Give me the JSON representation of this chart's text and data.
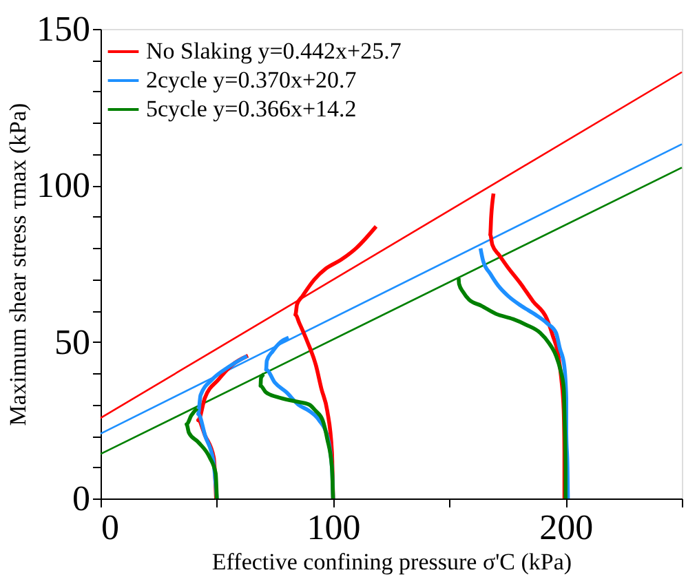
{
  "chart_data": {
    "type": "line",
    "xlabel": "Effective confining pressure σ'C (kPa)",
    "ylabel": "Maximum shear stress τmax (kPa)",
    "xlim": [
      0,
      250
    ],
    "xticks": [
      0,
      {
        "value": 50,
        "label": null
      },
      100,
      {
        "value": 150,
        "label": null
      },
      200,
      {
        "value": 250,
        "label": null
      }
    ],
    "ylim": [
      0,
      150
    ],
    "yticks": [
      0,
      {
        "value": 10,
        "label": null
      },
      {
        "value": 20,
        "label": null
      },
      {
        "value": 30,
        "label": null
      },
      {
        "value": 40,
        "label": null
      },
      50,
      {
        "value": 60,
        "label": null
      },
      {
        "value": 70,
        "label": null
      },
      {
        "value": 80,
        "label": null
      },
      {
        "value": 90,
        "label": null
      },
      100,
      {
        "value": 110,
        "label": null
      },
      {
        "value": 120,
        "label": null
      },
      {
        "value": 130,
        "label": null
      },
      {
        "value": 140,
        "label": null
      },
      150
    ],
    "grid": false,
    "legend": "top left",
    "marker": "none",
    "line_style": "solid",
    "series": [
      {
        "name": "No Slaking    y=0.442x+25.7",
        "color": "#ff0000",
        "x": [
          0,
          250
        ],
        "values": [
          25.7,
          136.2
        ]
      },
      {
        "name": "2cycle    y=0.370x+20.7",
        "color": "#1e90ff",
        "x": [
          0,
          250
        ],
        "values": [
          20.7,
          113.2
        ]
      },
      {
        "name": "5cycle    y=0.366x+14.2",
        "color": "#008000",
        "x": [
          0,
          250
        ],
        "values": [
          14.2,
          105.7
        ]
      },
      {
        "color": "#ff0000",
        "x": [
          49.7,
          48.7,
          45,
          42,
          44.8,
          50.7,
          56.5,
          63.4
        ],
        "values": [
          0,
          13,
          20,
          25,
          32,
          38,
          42.6,
          45.6
        ]
      },
      {
        "color": "#1e90ff",
        "x": [
          50,
          48.5,
          45,
          42,
          43,
          48,
          55,
          63
        ],
        "values": [
          0,
          12,
          20,
          27,
          33,
          38,
          42,
          45.5
        ]
      },
      {
        "color": "#008000",
        "x": [
          50,
          49.5,
          47,
          42,
          38,
          37,
          39,
          41.5
        ],
        "values": [
          0,
          8,
          13,
          18,
          21,
          23.7,
          26.5,
          28.8
        ]
      },
      {
        "color": "#ff0000",
        "x": [
          100,
          99.5,
          97.5,
          95,
          92.6,
          89,
          85.5,
          83.8,
          84.5,
          86.7,
          92,
          97,
          103.3,
          110,
          118.5
        ],
        "values": [
          0,
          15,
          28,
          35,
          42.6,
          50,
          56,
          58.7,
          62,
          64.5,
          70,
          73.5,
          76.2,
          80,
          86.9
        ]
      },
      {
        "color": "#1e90ff",
        "x": [
          100,
          99.5,
          97.5,
          94,
          89.7,
          85,
          80,
          75,
          71.2,
          71.5,
          74,
          77.5,
          80.9
        ],
        "values": [
          0,
          10,
          20,
          25,
          28,
          30,
          33.9,
          37,
          41.2,
          44,
          47,
          50,
          51.4
        ]
      },
      {
        "color": "#008000",
        "x": [
          100,
          99.5,
          97.5,
          95.5,
          92.5,
          89.7,
          84,
          76,
          71,
          68.8,
          69,
          70.2
        ],
        "values": [
          0,
          10,
          19,
          25,
          28,
          30,
          31,
          32.4,
          34,
          36,
          38.5,
          39.7
        ]
      },
      {
        "color": "#ff0000",
        "x": [
          199.5,
          199.5,
          199.2,
          198.2,
          196.9,
          194.5,
          192,
          186,
          180.3,
          175,
          171.5,
          168.5,
          167.6,
          168,
          169
        ],
        "values": [
          0,
          15,
          28,
          38,
          45.6,
          52,
          57.3,
          63,
          69,
          74,
          77.7,
          81,
          84.3,
          90,
          97.4
        ]
      },
      {
        "color": "#1e90ff",
        "x": [
          201,
          200.8,
          200.3,
          200.3,
          199.4,
          197.5,
          195.9,
          192,
          187.1,
          181,
          175.4,
          171,
          167.6,
          164.5,
          163.4
        ],
        "values": [
          0,
          10,
          20.7,
          32,
          42.6,
          48,
          52.9,
          56,
          58.7,
          61.5,
          64.6,
          68,
          71.8,
          76,
          79.9
        ]
      },
      {
        "color": "#008000",
        "x": [
          200,
          200,
          199.6,
          199.2,
          197.8,
          195.9,
          193,
          189.1,
          183,
          177.4,
          170,
          163.7,
          158.5,
          155.9,
          154.2,
          154
        ],
        "values": [
          0,
          10,
          25,
          35.3,
          41,
          45.6,
          49.5,
          52.9,
          55.5,
          57.3,
          59,
          61.6,
          63.5,
          66,
          68.5,
          70.4
        ]
      }
    ]
  }
}
